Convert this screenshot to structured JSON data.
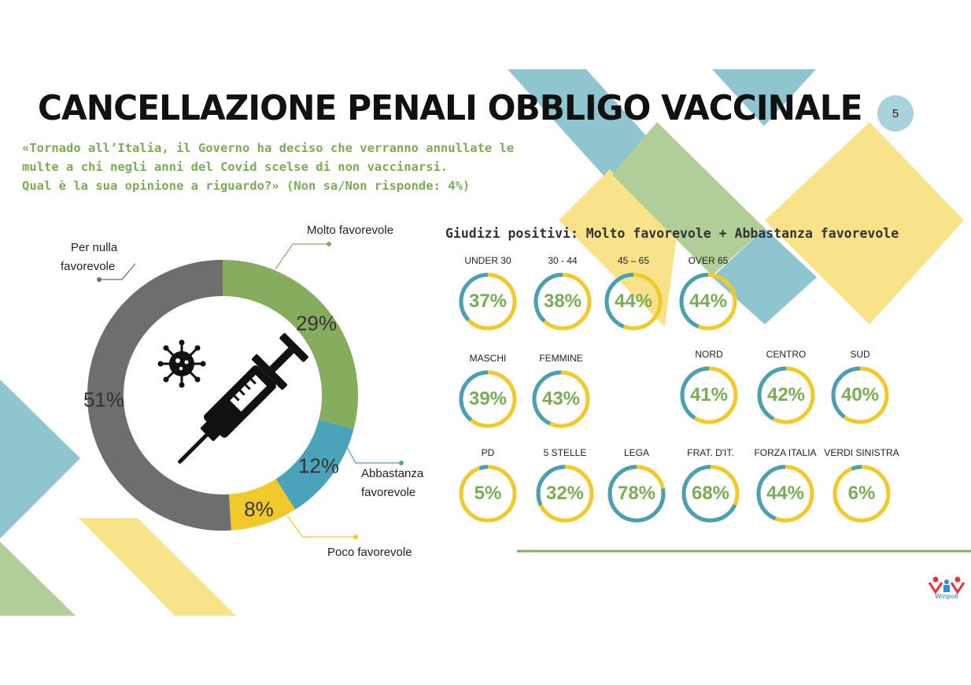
{
  "page": {
    "title": "CANCELLAZIONE PENALI OBBLIGO VACCINALE",
    "page_number": "5",
    "question": "«Tornado all’Italia, il Governo ha deciso che verranno annullate le\nmulte a chi negli anni del Covid scelse di non vaccinarsi.\nQual è la sua opinione a riguardo?» (Non sa/Non risponde: 4%)"
  },
  "donut": {
    "labels": {
      "molto": "Molto favorevole",
      "abbastanza_1": "Abbastanza",
      "abbastanza_2": "favorevole",
      "poco": "Poco favorevole",
      "nulla_1": "Per nulla",
      "nulla_2": "favorevole"
    },
    "pct_labels": {
      "molto": "29%",
      "abbastanza": "12%",
      "poco": "8%",
      "nulla": "51%"
    },
    "icons": [
      "virus-icon",
      "syringe-icon"
    ]
  },
  "panel": {
    "title": "Giudizi positivi: Molto favorevole + Abbastanza favorevole",
    "groups": [
      {
        "label": "UNDER 30",
        "value": "37%"
      },
      {
        "label": "30 - 44",
        "value": "38%"
      },
      {
        "label": "45 – 65",
        "value": "44%"
      },
      {
        "label": "OVER 65",
        "value": "44%"
      },
      {
        "label": "MASCHI",
        "value": "39%"
      },
      {
        "label": "FEMMINE",
        "value": "43%"
      },
      {
        "label": "NORD",
        "value": "41%"
      },
      {
        "label": "CENTRO",
        "value": "42%"
      },
      {
        "label": "SUD",
        "value": "40%"
      },
      {
        "label": "PD",
        "value": "5%"
      },
      {
        "label": "5 STELLE",
        "value": "32%"
      },
      {
        "label": "LEGA",
        "value": "78%"
      },
      {
        "label": "FRAT. D'IT.",
        "value": "68%"
      },
      {
        "label": "FORZA ITALIA",
        "value": "44%"
      },
      {
        "label": "VERDI SINISTRA",
        "value": "6%"
      }
    ]
  },
  "logo": {
    "text": "Winpoll"
  },
  "colors": {
    "molto": "#86ad5d",
    "abbastanza": "#4aa3b8",
    "poco": "#f2c92a",
    "nulla": "#6e6e6e",
    "gauge_positive": "#4a9fb5",
    "gauge_rest": "#f2c92a",
    "value_text": "#7aab55"
  },
  "chart_data": [
    {
      "type": "pie",
      "categories": [
        "Molto favorevole",
        "Abbastanza favorevole",
        "Poco favorevole",
        "Per nulla favorevole"
      ],
      "values": [
        29,
        12,
        8,
        51
      ]
    },
    {
      "type": "pie",
      "title": "Giudizi positivi: Molto favorevole + Abbastanza favorevole",
      "categories": [
        "UNDER 30",
        "30 - 44",
        "45 – 65",
        "OVER 65",
        "MASCHI",
        "FEMMINE",
        "NORD",
        "CENTRO",
        "SUD",
        "PD",
        "5 STELLE",
        "LEGA",
        "FRAT. D'IT.",
        "FORZA ITALIA",
        "VERDI SINISTRA"
      ],
      "values": [
        37,
        38,
        44,
        44,
        39,
        43,
        41,
        42,
        40,
        5,
        32,
        78,
        68,
        44,
        6
      ]
    }
  ]
}
